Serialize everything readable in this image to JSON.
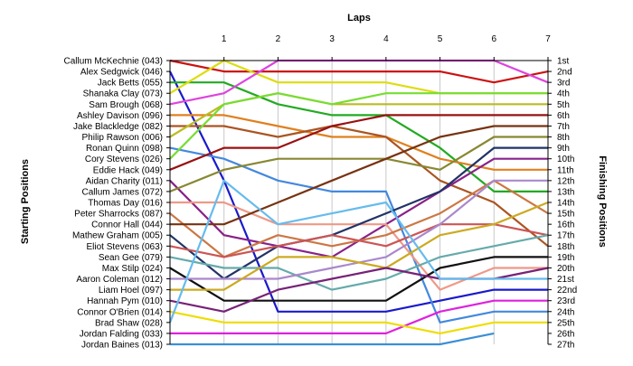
{
  "chart_data": {
    "type": "line",
    "title": "Laps",
    "xlabel": "Laps",
    "ylabel_left": "Starting Positions",
    "ylabel_right": "Finishing Positions",
    "x": [
      0,
      1,
      2,
      3,
      4,
      5,
      6,
      7
    ],
    "x_tick_labels": [
      "1",
      "2",
      "3",
      "4",
      "5",
      "6",
      "7"
    ],
    "ylim": [
      1,
      27
    ],
    "y_reversed": true,
    "grid": true,
    "finishing_tick_labels": [
      "1st",
      "2nd",
      "3rd",
      "4th",
      "5th",
      "6th",
      "7th",
      "8th",
      "9th",
      "10th",
      "11th",
      "12th",
      "13th",
      "14th",
      "15th",
      "16th",
      "17th",
      "18th",
      "19th",
      "20th",
      "21st",
      "22nd",
      "23rd",
      "24th",
      "25th",
      "26th",
      "27th"
    ],
    "series": [
      {
        "name": "Callum McKechnie (043)",
        "color": "#cc1111",
        "values": [
          1,
          2,
          2,
          2,
          2,
          2,
          3,
          2
        ]
      },
      {
        "name": "Alex Sedgwick (046)",
        "color": "#1a1acc",
        "values": [
          2,
          12,
          24,
          24,
          24,
          23,
          22,
          22
        ]
      },
      {
        "name": "Jack Betts (055)",
        "color": "#22aa22",
        "values": [
          3,
          3,
          5,
          6,
          6,
          9,
          13,
          13
        ]
      },
      {
        "name": "Shanaka Clay (073)",
        "color": "#dddd11",
        "values": [
          4,
          1,
          3,
          3,
          3,
          4,
          4,
          4
        ]
      },
      {
        "name": "Sam Brough (068)",
        "color": "#dd44dd",
        "values": [
          5,
          4,
          1,
          1,
          1,
          1,
          1,
          3
        ]
      },
      {
        "name": "Ashley Davison (096)",
        "color": "#e08020",
        "values": [
          6,
          6,
          7,
          8,
          8,
          10,
          11,
          11
        ]
      },
      {
        "name": "Jake Blackledge (082)",
        "color": "#aa5522",
        "values": [
          7,
          7,
          8,
          7,
          8,
          12,
          14,
          18
        ]
      },
      {
        "name": "Philip Rawson (006)",
        "color": "#bbbb22",
        "values": [
          8,
          5,
          4,
          5,
          5,
          5,
          5,
          5
        ]
      },
      {
        "name": "Ronan Quinn (098)",
        "color": "#4488dd",
        "values": [
          9,
          10,
          12,
          13,
          13,
          25,
          24,
          24
        ]
      },
      {
        "name": "Cory Stevens (026)",
        "color": "#77dd33",
        "values": [
          10,
          5,
          4,
          5,
          4,
          4,
          4,
          4
        ]
      },
      {
        "name": "Eddie Hack (049)",
        "color": "#991111",
        "values": [
          11,
          9,
          9,
          7,
          6,
          6,
          6,
          6
        ]
      },
      {
        "name": "Aidan Charity (011)",
        "color": "#882288",
        "values": [
          12,
          17,
          18,
          19,
          16,
          13,
          10,
          10
        ]
      },
      {
        "name": "Callum James (072)",
        "color": "#888833",
        "values": [
          13,
          11,
          10,
          10,
          10,
          11,
          8,
          8
        ]
      },
      {
        "name": "Thomas Day (016)",
        "color": "#ee9988",
        "values": [
          14,
          14,
          16,
          16,
          16,
          22,
          20,
          20
        ]
      },
      {
        "name": "Peter Sharrocks (087)",
        "color": "#cc7744",
        "values": [
          15,
          19,
          17,
          18,
          17,
          15,
          12,
          15
        ]
      },
      {
        "name": "Connor Hall (044)",
        "color": "#773311",
        "values": [
          16,
          16,
          14,
          12,
          10,
          8,
          7,
          7
        ]
      },
      {
        "name": "Mathew Graham (005)",
        "color": "#223366",
        "values": [
          17,
          21,
          18,
          17,
          15,
          13,
          9,
          9
        ]
      },
      {
        "name": "Eliot Stevens (063)",
        "color": "#cc5555",
        "values": [
          18,
          19,
          18,
          17,
          18,
          16,
          16,
          17
        ]
      },
      {
        "name": "Sean Gee (079)",
        "color": "#66aaaa",
        "values": [
          19,
          20,
          20,
          22,
          21,
          19,
          18,
          17
        ]
      },
      {
        "name": "Max Stilp (024)",
        "color": "#111111",
        "values": [
          20,
          23,
          23,
          23,
          23,
          20,
          19,
          19
        ]
      },
      {
        "name": "Aaron Coleman (012)",
        "color": "#aa88cc",
        "values": [
          21,
          21,
          21,
          20,
          19,
          16,
          12,
          12
        ]
      },
      {
        "name": "Liam Hoel (097)",
        "color": "#ccaa22",
        "values": [
          22,
          22,
          19,
          19,
          20,
          17,
          16,
          14
        ]
      },
      {
        "name": "Hannah Pym (010)",
        "color": "#dd22dd",
        "values": [
          26,
          26,
          26,
          26,
          26,
          24,
          23,
          23
        ]
      },
      {
        "name": "Connor O'Brien (014)",
        "color": "#772277",
        "values": [
          23,
          24,
          22,
          21,
          20,
          21,
          21,
          20
        ]
      },
      {
        "name": "Brad Shaw (028)",
        "color": "#eedd00",
        "values": [
          24,
          25,
          25,
          25,
          25,
          26,
          25,
          25
        ]
      },
      {
        "name": "Jordan Falding (033)",
        "color": "#66bbee",
        "values": [
          25,
          12,
          16,
          15,
          14,
          21,
          21,
          21
        ]
      },
      {
        "name": "Jordan Baines (013)",
        "color": "#3a8fd6",
        "values": [
          27,
          27,
          27,
          27,
          27,
          27,
          26,
          null
        ]
      }
    ]
  }
}
